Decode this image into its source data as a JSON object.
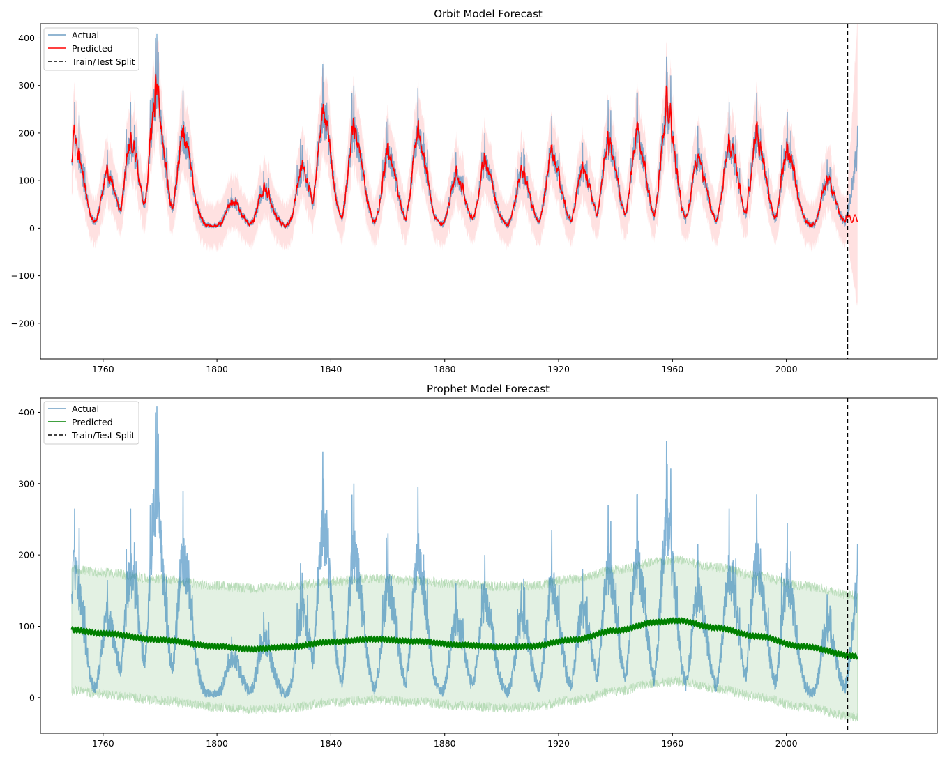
{
  "chart_data": [
    {
      "type": "line",
      "title": "Orbit Model Forecast",
      "xlabel": "",
      "ylabel": "",
      "xlim": [
        1738,
        2053
      ],
      "ylim": [
        -275,
        430
      ],
      "xticks": [
        1760,
        1800,
        1840,
        1880,
        1920,
        1960,
        2000
      ],
      "xtick_labels": [
        "1760",
        "1800",
        "1840",
        "1880",
        "1920",
        "1960",
        "2000"
      ],
      "yticks": [
        -200,
        -100,
        0,
        100,
        200,
        300,
        400
      ],
      "ytick_labels": [
        "−200",
        "−100",
        "0",
        "100",
        "200",
        "300",
        "400"
      ],
      "grid": false,
      "legend_position": "top-left",
      "legend": [
        {
          "label": "Actual",
          "color": "#6f9ec4",
          "style": "solid"
        },
        {
          "label": "Predicted",
          "color": "#ff0000",
          "style": "solid"
        },
        {
          "label": "Train/Test Split",
          "color": "#000000",
          "style": "dashed"
        }
      ],
      "split_x": 2021.5,
      "x_range": [
        1749,
        2025
      ],
      "series": [
        {
          "name": "Actual",
          "color": "#1f77b4",
          "kind": "sunspot_actual"
        },
        {
          "name": "Predicted",
          "color": "#ff0000",
          "kind": "smoothed_with_band",
          "band_color": "#ffc9c9"
        }
      ],
      "cycle_peaks": [
        {
          "x": 1750.0,
          "y": 265
        },
        {
          "x": 1761.5,
          "y": 165
        },
        {
          "x": 1769.7,
          "y": 265
        },
        {
          "x": 1778.4,
          "y": 400
        },
        {
          "x": 1788.1,
          "y": 290
        },
        {
          "x": 1805.2,
          "y": 85
        },
        {
          "x": 1816.4,
          "y": 120
        },
        {
          "x": 1829.9,
          "y": 175
        },
        {
          "x": 1837.2,
          "y": 345
        },
        {
          "x": 1848.1,
          "y": 300
        },
        {
          "x": 1860.1,
          "y": 230
        },
        {
          "x": 1870.6,
          "y": 295
        },
        {
          "x": 1883.9,
          "y": 160
        },
        {
          "x": 1894.1,
          "y": 200
        },
        {
          "x": 1907.0,
          "y": 160
        },
        {
          "x": 1917.6,
          "y": 235
        },
        {
          "x": 1928.4,
          "y": 180
        },
        {
          "x": 1937.4,
          "y": 270
        },
        {
          "x": 1947.5,
          "y": 285
        },
        {
          "x": 1957.9,
          "y": 360
        },
        {
          "x": 1968.9,
          "y": 215
        },
        {
          "x": 1979.9,
          "y": 265
        },
        {
          "x": 1989.6,
          "y": 285
        },
        {
          "x": 2000.3,
          "y": 245
        },
        {
          "x": 2014.3,
          "y": 145
        },
        {
          "x": 2025.0,
          "y": 215
        }
      ]
    },
    {
      "type": "line",
      "title": "Prophet Model Forecast",
      "xlabel": "",
      "ylabel": "",
      "xlim": [
        1738,
        2053
      ],
      "ylim": [
        -50,
        420
      ],
      "xticks": [
        1760,
        1800,
        1840,
        1880,
        1920,
        1960,
        2000
      ],
      "xtick_labels": [
        "1760",
        "1800",
        "1840",
        "1880",
        "1920",
        "1960",
        "2000"
      ],
      "yticks": [
        0,
        100,
        200,
        300,
        400
      ],
      "ytick_labels": [
        "0",
        "100",
        "200",
        "300",
        "400"
      ],
      "grid": false,
      "legend_position": "top-left",
      "legend": [
        {
          "label": "Actual",
          "color": "#6f9ec4",
          "style": "solid"
        },
        {
          "label": "Predicted",
          "color": "#008000",
          "style": "solid"
        },
        {
          "label": "Train/Test Split",
          "color": "#000000",
          "style": "dashed"
        }
      ],
      "split_x": 2021.5,
      "x_range": [
        1749,
        2025
      ],
      "series": [
        {
          "name": "Actual",
          "color": "#1f77b4",
          "kind": "sunspot_actual"
        },
        {
          "name": "Predicted",
          "color": "#008000",
          "kind": "trend_with_band",
          "band_color": "#c8e3c8"
        }
      ],
      "trend_points": [
        {
          "x": 1749,
          "y": 95
        },
        {
          "x": 1760,
          "y": 90
        },
        {
          "x": 1780,
          "y": 81
        },
        {
          "x": 1800,
          "y": 72
        },
        {
          "x": 1812,
          "y": 68
        },
        {
          "x": 1825,
          "y": 71
        },
        {
          "x": 1840,
          "y": 78
        },
        {
          "x": 1855,
          "y": 82
        },
        {
          "x": 1870,
          "y": 79
        },
        {
          "x": 1885,
          "y": 74
        },
        {
          "x": 1900,
          "y": 71
        },
        {
          "x": 1910,
          "y": 72
        },
        {
          "x": 1925,
          "y": 81
        },
        {
          "x": 1940,
          "y": 94
        },
        {
          "x": 1955,
          "y": 106
        },
        {
          "x": 1962,
          "y": 108
        },
        {
          "x": 1975,
          "y": 98
        },
        {
          "x": 1990,
          "y": 86
        },
        {
          "x": 2005,
          "y": 72
        },
        {
          "x": 2025,
          "y": 58
        }
      ],
      "band_halfwidth": 85
    }
  ]
}
